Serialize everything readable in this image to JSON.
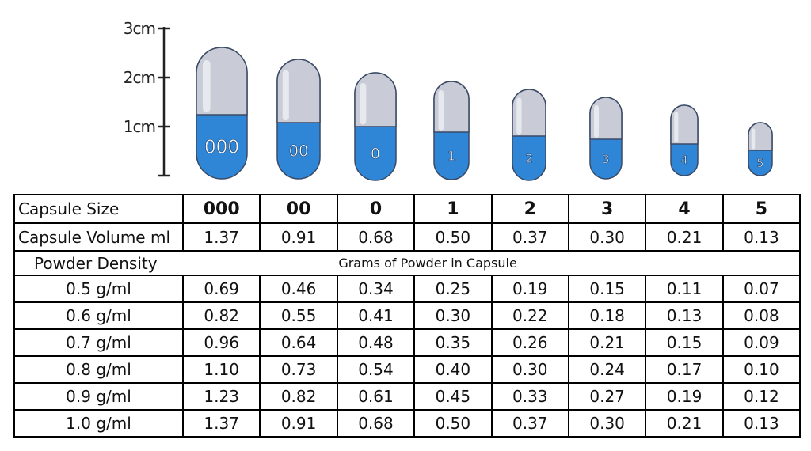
{
  "scale": {
    "labels": [
      "3cm",
      "2cm",
      "1cm"
    ]
  },
  "table": {
    "header": [
      "Capsule Size",
      "000",
      "00",
      "0",
      "1",
      "2",
      "3",
      "4",
      "5"
    ],
    "volume": [
      "Capsule Volume ml",
      "1.37",
      "0.91",
      "0.68",
      "0.50",
      "0.37",
      "0.30",
      "0.21",
      "0.13"
    ],
    "density_heading": [
      "Powder Density",
      "Grams of Powder in Capsule"
    ],
    "rows": [
      [
        "0.5 g/ml",
        "0.69",
        "0.46",
        "0.34",
        "0.25",
        "0.19",
        "0.15",
        "0.11",
        "0.07"
      ],
      [
        "0.6 g/ml",
        "0.82",
        "0.55",
        "0.41",
        "0.30",
        "0.22",
        "0.18",
        "0.13",
        "0.08"
      ],
      [
        "0.7 g/ml",
        "0.96",
        "0.64",
        "0.48",
        "0.35",
        "0.26",
        "0.21",
        "0.15",
        "0.09"
      ],
      [
        "0.8 g/ml",
        "1.10",
        "0.73",
        "0.54",
        "0.40",
        "0.30",
        "0.24",
        "0.17",
        "0.10"
      ],
      [
        "0.9 g/ml",
        "1.23",
        "0.82",
        "0.61",
        "0.45",
        "0.33",
        "0.27",
        "0.19",
        "0.12"
      ],
      [
        "1.0 g/ml",
        "1.37",
        "0.91",
        "0.68",
        "0.50",
        "0.37",
        "0.30",
        "0.21",
        "0.13"
      ]
    ]
  }
}
